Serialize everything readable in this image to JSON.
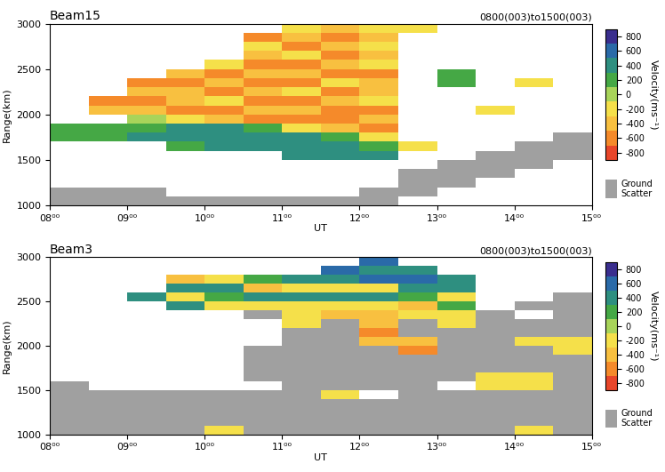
{
  "chart_data": [
    {
      "type": "heatmap",
      "title": "Beam15",
      "subtitle": "0800(003)to1500(003)",
      "xlabel": "UT",
      "ylabel": "Range(km)",
      "xlim": [
        8,
        15
      ],
      "ylim": [
        1000,
        3000
      ],
      "xticks": [
        {
          "value": 8,
          "label": "08⁰⁰"
        },
        {
          "value": 9,
          "label": "09⁰⁰"
        },
        {
          "value": 10,
          "label": "10⁰⁰"
        },
        {
          "value": 11,
          "label": "11⁰⁰"
        },
        {
          "value": 12,
          "label": "12⁰⁰"
        },
        {
          "value": 13,
          "label": "13⁰⁰"
        },
        {
          "value": 14,
          "label": "14⁰⁰"
        },
        {
          "value": 15,
          "label": "15⁰⁰"
        }
      ],
      "yticks": [
        1000,
        1500,
        2000,
        2500,
        3000
      ],
      "x_edges": [
        8,
        8.5,
        9,
        9.5,
        10,
        10.5,
        11,
        11.5,
        12,
        12.5,
        13,
        13.5,
        14,
        14.5,
        15
      ],
      "y_edges": [
        1000,
        1100,
        1200,
        1300,
        1400,
        1500,
        1600,
        1700,
        1800,
        1900,
        2000,
        2100,
        2200,
        2300,
        2400,
        2500,
        2600,
        2700,
        2800,
        2900,
        3000
      ],
      "cells": [
        [
          "G",
          "G",
          null,
          null,
          null,
          null,
          null,
          100,
          200,
          null,
          null,
          null,
          null,
          null,
          null,
          null,
          null,
          null,
          null,
          null
        ],
        [
          "G",
          "G",
          null,
          null,
          null,
          null,
          null,
          200,
          200,
          null,
          -400,
          -600,
          null,
          null,
          null,
          null,
          null,
          null,
          null,
          null
        ],
        [
          "G",
          "G",
          null,
          null,
          null,
          null,
          null,
          300,
          200,
          0,
          -500,
          -600,
          -400,
          -600,
          null,
          null,
          null,
          null,
          null,
          null
        ],
        [
          "G",
          null,
          null,
          null,
          null,
          null,
          200,
          300,
          300,
          -200,
          -600,
          -500,
          -400,
          -600,
          -500,
          null,
          null,
          null,
          null,
          null
        ],
        [
          "G",
          null,
          null,
          null,
          null,
          null,
          300,
          400,
          300,
          -400,
          -600,
          -300,
          -600,
          -400,
          -600,
          -300,
          null,
          null,
          null,
          null
        ],
        [
          "G",
          null,
          null,
          null,
          null,
          null,
          400,
          400,
          200,
          -600,
          -500,
          -600,
          -400,
          -600,
          -400,
          -600,
          -500,
          -300,
          -600,
          null
        ],
        [
          "G",
          null,
          null,
          null,
          null,
          300,
          400,
          300,
          -200,
          -600,
          -400,
          -600,
          -300,
          -600,
          -400,
          -600,
          -300,
          -600,
          -400,
          -200
        ],
        [
          "G",
          null,
          null,
          null,
          null,
          400,
          300,
          200,
          -400,
          -600,
          -600,
          -400,
          -600,
          -300,
          -600,
          -400,
          -600,
          -400,
          -600,
          -400
        ],
        [
          "G",
          "G",
          null,
          null,
          null,
          300,
          200,
          -300,
          -600,
          -400,
          -600,
          -300,
          -500,
          -400,
          -600,
          -300,
          -500,
          -300,
          -400,
          -200
        ],
        [
          null,
          "G",
          "G",
          "G",
          null,
          null,
          -200,
          null,
          null,
          null,
          null,
          null,
          null,
          null,
          null,
          null,
          null,
          null,
          null,
          -200
        ],
        [
          null,
          null,
          "G",
          "G",
          "G",
          null,
          null,
          null,
          null,
          null,
          null,
          null,
          null,
          200,
          200,
          null,
          null,
          null,
          null,
          null
        ],
        [
          null,
          null,
          null,
          "G",
          "G",
          "G",
          null,
          null,
          null,
          null,
          -200,
          null,
          null,
          null,
          null,
          null,
          null,
          null,
          null,
          null
        ],
        [
          null,
          null,
          null,
          null,
          "G",
          "G",
          "G",
          null,
          null,
          null,
          null,
          null,
          null,
          -200,
          null,
          null,
          null,
          null,
          null,
          null
        ],
        [
          null,
          null,
          null,
          null,
          null,
          "G",
          "G",
          "G",
          null,
          null,
          null,
          null,
          null,
          null,
          null,
          null,
          null,
          null,
          null,
          null
        ]
      ]
    },
    {
      "type": "heatmap",
      "title": "Beam3",
      "subtitle": "0800(003)to1500(003)",
      "xlabel": "UT",
      "ylabel": "Range(km)",
      "xlim": [
        8,
        15
      ],
      "ylim": [
        1000,
        3000
      ],
      "xticks": [
        {
          "value": 8,
          "label": "08⁰⁰"
        },
        {
          "value": 9,
          "label": "09⁰⁰"
        },
        {
          "value": 10,
          "label": "10⁰⁰"
        },
        {
          "value": 11,
          "label": "11⁰⁰"
        },
        {
          "value": 12,
          "label": "12⁰⁰"
        },
        {
          "value": 13,
          "label": "13⁰⁰"
        },
        {
          "value": 14,
          "label": "14⁰⁰"
        },
        {
          "value": 15,
          "label": "15⁰⁰"
        }
      ],
      "yticks": [
        1000,
        1500,
        2000,
        2500,
        3000
      ],
      "x_edges": [
        8,
        8.5,
        9,
        9.5,
        10,
        10.5,
        11,
        11.5,
        12,
        12.5,
        13,
        13.5,
        14,
        14.5,
        15
      ],
      "y_edges": [
        1000,
        1100,
        1200,
        1300,
        1400,
        1500,
        1600,
        1700,
        1800,
        1900,
        2000,
        2100,
        2200,
        2300,
        2400,
        2500,
        2600,
        2700,
        2800,
        2900,
        3000
      ],
      "cells": [
        [
          "G",
          "G",
          "G",
          "G",
          "G",
          "G",
          null,
          null,
          null,
          null,
          null,
          null,
          null,
          null,
          null,
          null,
          null,
          null,
          null,
          null
        ],
        [
          "G",
          "G",
          "G",
          "G",
          "G",
          null,
          null,
          null,
          null,
          null,
          null,
          null,
          null,
          null,
          null,
          null,
          null,
          null,
          null,
          null
        ],
        [
          "G",
          "G",
          "G",
          "G",
          "G",
          null,
          null,
          null,
          null,
          null,
          null,
          null,
          null,
          null,
          null,
          300,
          null,
          null,
          null,
          null
        ],
        [
          "G",
          "G",
          "G",
          "G",
          "G",
          null,
          null,
          null,
          null,
          null,
          null,
          null,
          null,
          null,
          400,
          -200,
          300,
          -400,
          null,
          null
        ],
        [
          -200,
          "G",
          "G",
          "G",
          "G",
          null,
          null,
          null,
          null,
          null,
          null,
          null,
          null,
          null,
          -200,
          200,
          400,
          -300,
          null,
          null
        ],
        [
          "G",
          "G",
          "G",
          "G",
          "G",
          null,
          "G",
          "G",
          "G",
          "G",
          null,
          null,
          null,
          "G",
          -300,
          300,
          -400,
          200,
          null,
          null
        ],
        [
          "G",
          "G",
          "G",
          "G",
          "G",
          "G",
          "G",
          "G",
          "G",
          "G",
          "G",
          "G",
          -200,
          -300,
          -200,
          400,
          -200,
          300,
          null,
          null
        ],
        [
          "G",
          "G",
          "G",
          "G",
          -200,
          "G",
          "G",
          "G",
          "G",
          "G",
          "G",
          "G",
          "G",
          -400,
          -200,
          300,
          -300,
          400,
          600,
          null
        ],
        [
          "G",
          "G",
          "G",
          "G",
          null,
          "G",
          "G",
          "G",
          "G",
          "G",
          -400,
          -600,
          -500,
          -400,
          -200,
          300,
          -200,
          500,
          400,
          600
        ],
        [
          "G",
          "G",
          "G",
          "G",
          "G",
          "G",
          "G",
          "G",
          "G",
          -600,
          -500,
          "G",
          "G",
          -200,
          -400,
          200,
          400,
          600,
          300,
          null
        ],
        [
          "G",
          "G",
          "G",
          "G",
          "G",
          null,
          "G",
          "G",
          "G",
          "G",
          "G",
          "G",
          -200,
          -200,
          200,
          -300,
          400,
          300,
          null,
          null
        ],
        [
          "G",
          "G",
          "G",
          "G",
          "G",
          -200,
          -200,
          "G",
          "G",
          "G",
          "G",
          "G",
          "G",
          "G",
          null,
          null,
          null,
          null,
          null,
          null
        ],
        [
          -200,
          "G",
          "G",
          "G",
          "G",
          -200,
          -200,
          "G",
          "G",
          "G",
          -200,
          "G",
          "G",
          null,
          "G",
          null,
          null,
          null,
          null,
          null
        ],
        [
          "G",
          "G",
          "G",
          "G",
          "G",
          "G",
          "G",
          "G",
          "G",
          -200,
          -200,
          "G",
          "G",
          "G",
          "G",
          "G",
          null,
          null,
          null,
          null
        ]
      ]
    }
  ],
  "colorbar": {
    "label": "Velocity(ms⁻¹)",
    "range": [
      -900,
      900
    ],
    "boundaries": [
      -900,
      -700,
      -500,
      -300,
      -100,
      100,
      300,
      500,
      700,
      900
    ],
    "colors": [
      "#e8462a",
      "#f58a2a",
      "#f8c040",
      "#f5e04a",
      "#a8d45a",
      "#45a845",
      "#2e8f80",
      "#2a6aa8",
      "#3a2e8e"
    ],
    "ticks": [
      800,
      600,
      400,
      200,
      0,
      -200,
      -400,
      -600,
      -800
    ]
  },
  "ground_scatter": {
    "label": "Ground\nScatter",
    "color": "#a0a0a0"
  }
}
